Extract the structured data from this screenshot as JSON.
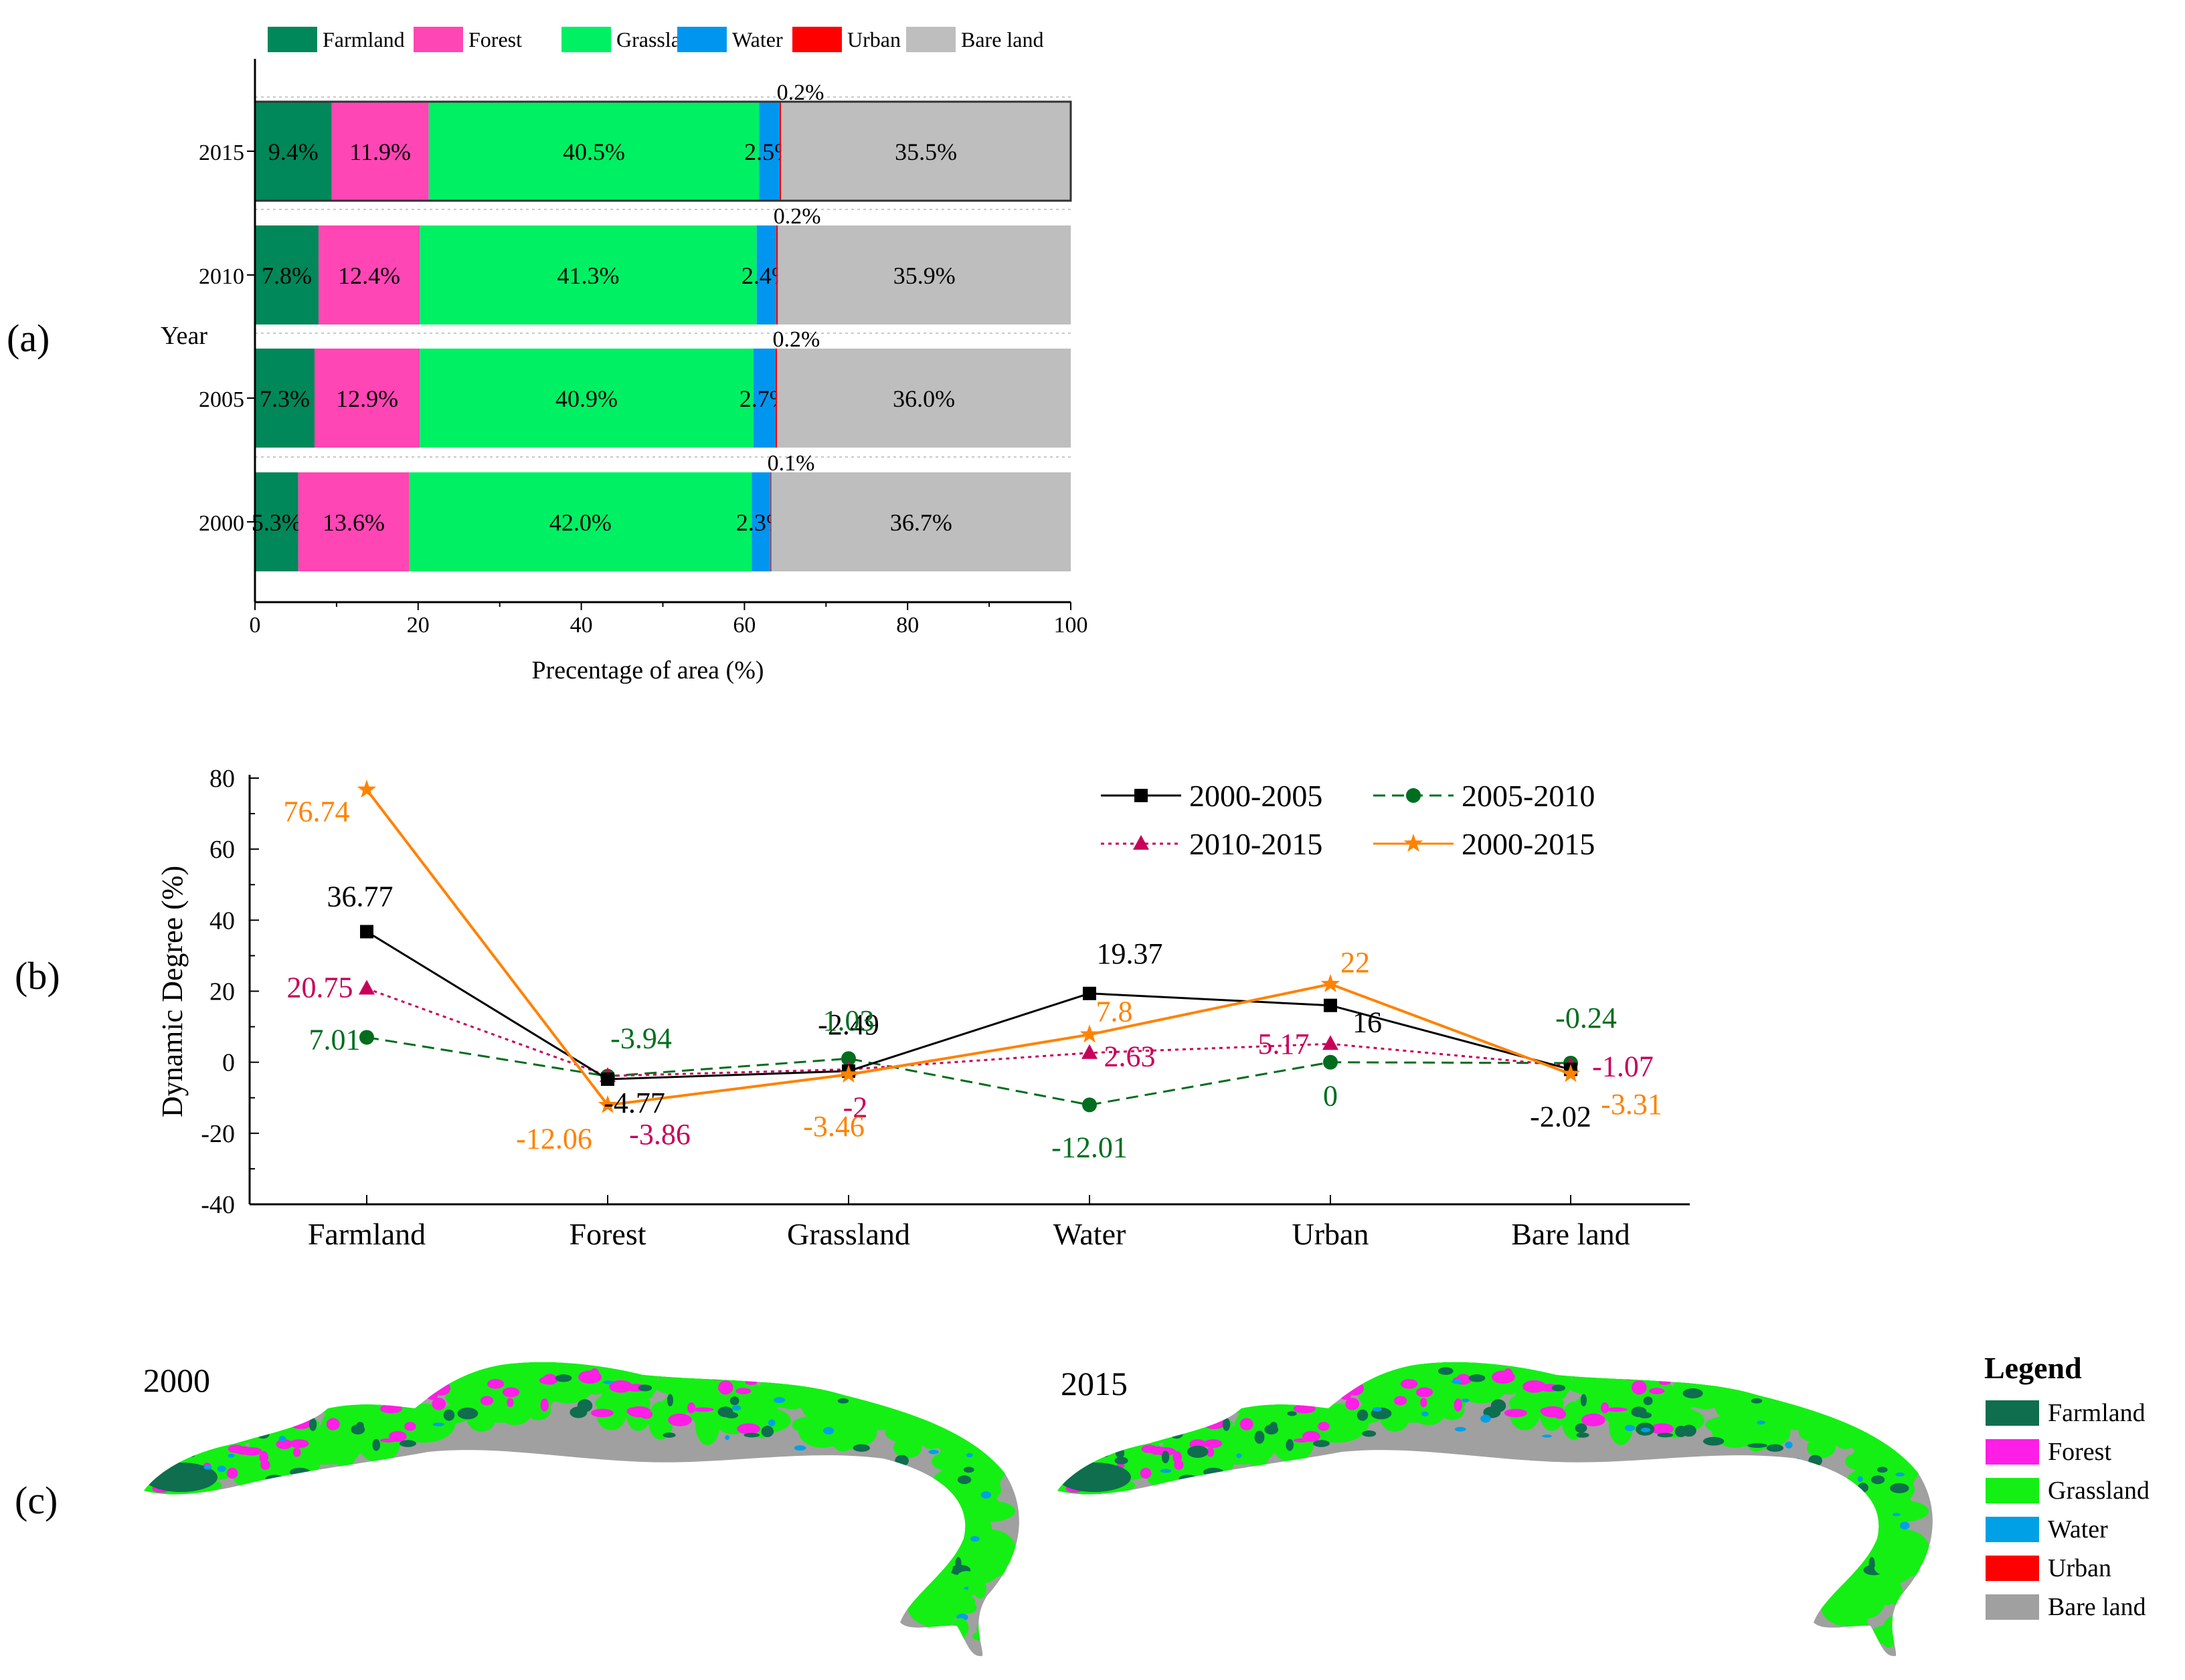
{
  "colors": {
    "Farmland": "#00875a",
    "Forest": "#ff46b4",
    "Grassland": "#00f064",
    "Water": "#0096f0",
    "Urban": "#ff0000",
    "Bare land": "#bebebe",
    "map_farmland": "#0e6e4e",
    "map_forest": "#ff1ee6",
    "map_grassland": "#14f014",
    "map_water": "#00a0e6",
    "map_urban": "#ff0000",
    "map_bare": "#a0a0a0",
    "s2000_2005": "#000000",
    "s2005_2010": "#006e1e",
    "s2010_2015": "#c8005a",
    "s2000_2015": "#ff8200"
  },
  "panel_labels": {
    "a": "(a)",
    "b": "(b)",
    "c": "(c)"
  },
  "chart_data": [
    {
      "type": "bar",
      "orientation": "horizontal-stacked",
      "categories": [
        "2015",
        "2010",
        "2005",
        "2000"
      ],
      "legend": [
        "Farmland",
        "Forest",
        "Grassland",
        "Water",
        "Urban",
        "Bare land"
      ],
      "series": [
        {
          "name": "Farmland",
          "values": [
            9.4,
            7.8,
            7.3,
            5.3
          ]
        },
        {
          "name": "Forest",
          "values": [
            11.9,
            12.4,
            12.9,
            13.6
          ]
        },
        {
          "name": "Grassland",
          "values": [
            40.5,
            41.3,
            40.9,
            42.0
          ]
        },
        {
          "name": "Water",
          "values": [
            2.5,
            2.4,
            2.7,
            2.3
          ]
        },
        {
          "name": "Urban",
          "values": [
            0.2,
            0.2,
            0.2,
            0.1
          ]
        },
        {
          "name": "Bare land",
          "values": [
            35.5,
            35.9,
            36.0,
            36.7
          ]
        }
      ],
      "labels": [
        [
          "9.4%",
          "11.9%",
          "40.5%",
          "2.5%",
          "0.2%",
          "35.5%"
        ],
        [
          "7.8%",
          "12.4%",
          "41.3%",
          "2.4%",
          "0.2%",
          "35.9%"
        ],
        [
          "7.3%",
          "12.9%",
          "40.9%",
          "2.7%",
          "0.2%",
          "36.0%"
        ],
        [
          "5.3%",
          "13.6%",
          "42.0%",
          "2.3%",
          "0.1%",
          "36.7%"
        ]
      ],
      "xlabel": "Precentage of area (%)",
      "ylabel": "Year",
      "xlim": [
        0,
        100
      ],
      "xticks": [
        "0",
        "20",
        "40",
        "60",
        "80",
        "100"
      ]
    },
    {
      "type": "line",
      "categories": [
        "Farmland",
        "Forest",
        "Grassland",
        "Water",
        "Urban",
        "Bare land"
      ],
      "ylabel": "Dynamic Degree (%)",
      "ylim": [
        -40,
        80
      ],
      "yticks": [
        "-40",
        "-20",
        "0",
        "20",
        "40",
        "60",
        "80"
      ],
      "series": [
        {
          "name": "2000-2005",
          "marker": "square",
          "dash": "solid",
          "values": [
            36.77,
            -4.77,
            -2.49,
            19.37,
            16,
            -2.02
          ],
          "labels": [
            "36.77",
            "-4.77",
            "-2.49",
            "19.37",
            "16",
            "-2.02"
          ]
        },
        {
          "name": "2005-2010",
          "marker": "circle",
          "dash": "dashed",
          "values": [
            7.01,
            -3.94,
            1.03,
            -12.01,
            0,
            -0.24
          ],
          "labels": [
            "7.01",
            "-3.94",
            "1.03",
            "-12.01",
            "0",
            "-0.24"
          ]
        },
        {
          "name": "2010-2015",
          "marker": "triangle",
          "dash": "dotted",
          "values": [
            20.75,
            -3.86,
            -2,
            2.63,
            5.17,
            -1.07
          ],
          "labels": [
            "20.75",
            "-3.86",
            "-2",
            "2.63",
            "5.17",
            "-1.07"
          ]
        },
        {
          "name": "2000-2015",
          "marker": "star",
          "dash": "solid",
          "values": [
            76.74,
            -12.06,
            -3.46,
            7.8,
            22,
            -3.31
          ],
          "labels": [
            "76.74",
            "-12.06",
            "-3.46",
            "7.8",
            "22",
            "-3.31"
          ]
        }
      ]
    }
  ],
  "maps": {
    "year_left": "2000",
    "year_right": "2015",
    "legend_title": "Legend",
    "legend_items": [
      {
        "label": "Farmland",
        "color": "#0e6e4e"
      },
      {
        "label": "Forest",
        "color": "#ff1ee6"
      },
      {
        "label": "Grassland",
        "color": "#14f014"
      },
      {
        "label": "Water",
        "color": "#00a0e6"
      },
      {
        "label": "Urban",
        "color": "#ff0000"
      },
      {
        "label": "Bare land",
        "color": "#a0a0a0"
      }
    ]
  }
}
